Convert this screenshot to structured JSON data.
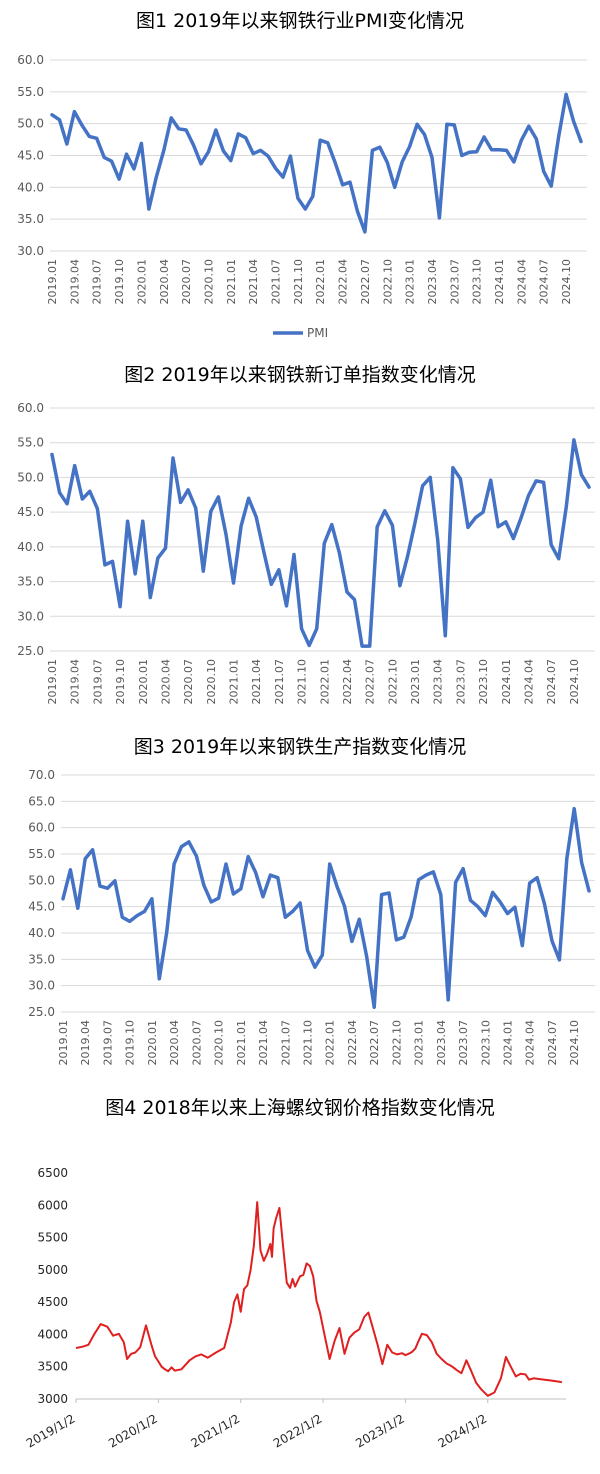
{
  "chart_data": [
    {
      "type": "line",
      "title": "图1  2019年以来钢铁行业PMI变化情况",
      "ylim": [
        30,
        60
      ],
      "yticks": [
        "30.0",
        "35.0",
        "40.0",
        "45.0",
        "50.0",
        "55.0",
        "60.0"
      ],
      "xticks": [
        "2019.01",
        "2019.04",
        "2019.07",
        "2019.10",
        "2020.01",
        "2020.04",
        "2020.07",
        "2020.10",
        "2021.01",
        "2021.04",
        "2021.07",
        "2021.10",
        "2022.01",
        "2022.04",
        "2022.07",
        "2022.10",
        "2023.01",
        "2023.04",
        "2023.07",
        "2023.10",
        "2024.01",
        "2024.04",
        "2024.07",
        "2024.10"
      ],
      "legend": "bottom",
      "grid": true,
      "color": "#4472C4",
      "series": [
        {
          "name": "PMI",
          "values": [
            51.4,
            50.6,
            46.8,
            51.9,
            49.8,
            48.0,
            47.7,
            44.7,
            44.1,
            41.3,
            45.2,
            42.9,
            46.9,
            36.6,
            41.6,
            45.8,
            50.9,
            49.2,
            49.0,
            46.6,
            43.7,
            45.6,
            49.0,
            45.7,
            44.2,
            48.4,
            47.8,
            45.3,
            45.8,
            44.9,
            43.0,
            41.6,
            44.9,
            38.3,
            36.6,
            38.6,
            47.4,
            47.0,
            43.9,
            40.4,
            40.8,
            36.2,
            33.0,
            45.8,
            46.3,
            43.9,
            40.0,
            44.0,
            46.4,
            49.9,
            48.3,
            44.7,
            35.2,
            49.9,
            49.8,
            45.0,
            45.5,
            45.6,
            47.9,
            45.9,
            45.9,
            45.8,
            44.0,
            47.4,
            49.6,
            47.6,
            42.5,
            40.2,
            47.9,
            54.6,
            50.4,
            47.2
          ]
        }
      ]
    },
    {
      "type": "line",
      "title": "图2  2019年以来钢铁新订单指数变化情况",
      "ylim": [
        25,
        60
      ],
      "yticks": [
        "25.0",
        "30.0",
        "35.0",
        "40.0",
        "45.0",
        "50.0",
        "55.0",
        "60.0"
      ],
      "xticks": [
        "2019.01",
        "2019.04",
        "2019.07",
        "2019.10",
        "2020.01",
        "2020.04",
        "2020.07",
        "2020.10",
        "2021.01",
        "2021.04",
        "2021.07",
        "2021.10",
        "2022.01",
        "2022.04",
        "2022.07",
        "2022.10",
        "2023.01",
        "2023.04",
        "2023.07",
        "2023.10",
        "2024.01",
        "2024.04",
        "2024.07",
        "2024.10"
      ],
      "grid": true,
      "color": "#4472C4",
      "series": [
        {
          "values": [
            53.3,
            47.8,
            46.2,
            51.7,
            46.9,
            48.0,
            45.5,
            37.4,
            37.9,
            31.4,
            43.7,
            36.1,
            43.7,
            32.7,
            38.4,
            39.8,
            52.8,
            46.4,
            48.2,
            45.6,
            36.5,
            45.1,
            47.2,
            41.8,
            34.8,
            43.0,
            47.0,
            44.3,
            39.3,
            34.6,
            36.7,
            31.5,
            38.9,
            28.2,
            25.8,
            28.2,
            40.5,
            43.2,
            39.1,
            33.5,
            32.4,
            25.7,
            25.7,
            42.9,
            45.2,
            43.1,
            34.4,
            38.6,
            43.5,
            48.8,
            50.0,
            41.0,
            27.2,
            51.4,
            49.8,
            42.8,
            44.2,
            45.0,
            49.6,
            42.9,
            43.6,
            41.2,
            44.1,
            47.4,
            49.5,
            49.3,
            40.3,
            38.3,
            45.8,
            55.4,
            50.4,
            48.6
          ]
        }
      ]
    },
    {
      "type": "line",
      "title": "图3  2019年以来钢铁生产指数变化情况",
      "ylim": [
        25,
        70
      ],
      "yticks": [
        "25.0",
        "30.0",
        "35.0",
        "40.0",
        "45.0",
        "50.0",
        "55.0",
        "60.0",
        "65.0",
        "70.0"
      ],
      "xticks": [
        "2019.01",
        "2019.04",
        "2019.07",
        "2019.10",
        "2020.01",
        "2020.04",
        "2020.07",
        "2020.10",
        "2021.01",
        "2021.04",
        "2021.07",
        "2021.10",
        "2022.01",
        "2022.04",
        "2022.07",
        "2022.10",
        "2023.01",
        "2023.04",
        "2023.07",
        "2023.10",
        "2024.01",
        "2024.04",
        "2024.07",
        "2024.10"
      ],
      "grid": true,
      "color": "#4472C4",
      "series": [
        {
          "values": [
            46.5,
            52.0,
            44.7,
            54.1,
            55.8,
            48.9,
            48.5,
            49.9,
            43.0,
            42.2,
            43.3,
            44.1,
            46.5,
            31.3,
            40.1,
            53.1,
            56.4,
            57.3,
            54.6,
            49.1,
            45.9,
            46.6,
            53.1,
            47.4,
            48.4,
            54.5,
            51.5,
            46.9,
            51.0,
            50.5,
            43.0,
            44.1,
            45.7,
            36.7,
            33.5,
            35.8,
            53.1,
            48.8,
            45.1,
            38.4,
            42.6,
            35.5,
            25.9,
            47.3,
            47.6,
            38.7,
            39.2,
            43.1,
            50.1,
            51.0,
            51.6,
            47.3,
            27.3,
            49.6,
            52.2,
            46.2,
            45.0,
            43.3,
            47.7,
            45.9,
            43.7,
            44.9,
            37.6,
            49.5,
            50.5,
            45.5,
            38.5,
            34.9,
            54.1,
            63.6,
            53.4,
            48.0
          ]
        }
      ]
    },
    {
      "type": "line",
      "title": "图4  2018年以来上海螺纹钢价格指数变化情况",
      "ylim": [
        3000,
        6500
      ],
      "yticks": [
        "3000",
        "3500",
        "4000",
        "4500",
        "5000",
        "5500",
        "6000",
        "6500"
      ],
      "xticks": [
        {
          "label": "2019/1/2",
          "x": 0
        },
        {
          "label": "2020/1/2",
          "x": 1
        },
        {
          "label": "2021/1/2",
          "x": 2
        },
        {
          "label": "2022/1/2",
          "x": 3
        },
        {
          "label": "2023/1/2",
          "x": 4
        },
        {
          "label": "2024/1/2",
          "x": 5
        }
      ],
      "grid": false,
      "color": "#E02020",
      "xlim": [
        0,
        5.95
      ],
      "series": [
        {
          "x": [
            0,
            0.08,
            0.15,
            0.22,
            0.3,
            0.38,
            0.45,
            0.52,
            0.58,
            0.62,
            0.67,
            0.72,
            0.78,
            0.85,
            0.92,
            0.96,
            1.0,
            1.04,
            1.08,
            1.12,
            1.16,
            1.2,
            1.28,
            1.38,
            1.45,
            1.52,
            1.6,
            1.7,
            1.8,
            1.88,
            1.92,
            1.96,
            2.0,
            2.04,
            2.08,
            2.12,
            2.16,
            2.2,
            2.24,
            2.28,
            2.32,
            2.36,
            2.38,
            2.4,
            2.43,
            2.47,
            2.52,
            2.56,
            2.6,
            2.63,
            2.66,
            2.69,
            2.72,
            2.76,
            2.8,
            2.84,
            2.88,
            2.92,
            2.96,
            3.02,
            3.08,
            3.14,
            3.2,
            3.26,
            3.32,
            3.38,
            3.44,
            3.5,
            3.55,
            3.6,
            3.66,
            3.72,
            3.78,
            3.84,
            3.9,
            3.96,
            4.0,
            4.04,
            4.08,
            4.12,
            4.16,
            4.2,
            4.26,
            4.32,
            4.38,
            4.44,
            4.5,
            4.56,
            4.62,
            4.68,
            4.74,
            4.8,
            4.86,
            4.92,
            5.0,
            5.08,
            5.16,
            5.22,
            5.28,
            5.34,
            5.4,
            5.46,
            5.5,
            5.56,
            5.62,
            5.68,
            5.74,
            5.8,
            5.86,
            5.9
          ],
          "values": [
            3790,
            3810,
            3840,
            4000,
            4160,
            4120,
            3980,
            4010,
            3880,
            3620,
            3700,
            3720,
            3800,
            4140,
            3820,
            3660,
            3580,
            3500,
            3460,
            3430,
            3490,
            3440,
            3460,
            3600,
            3660,
            3690,
            3640,
            3720,
            3790,
            4180,
            4500,
            4620,
            4350,
            4700,
            4760,
            5000,
            5380,
            6050,
            5300,
            5140,
            5250,
            5400,
            5200,
            5640,
            5800,
            5960,
            5300,
            4800,
            4720,
            4860,
            4740,
            4820,
            4900,
            4920,
            5100,
            5060,
            4900,
            4520,
            4350,
            3980,
            3620,
            3900,
            4100,
            3700,
            3950,
            4030,
            4080,
            4270,
            4340,
            4120,
            3850,
            3540,
            3840,
            3720,
            3690,
            3710,
            3680,
            3700,
            3730,
            3780,
            3900,
            4010,
            3990,
            3880,
            3700,
            3620,
            3550,
            3510,
            3450,
            3400,
            3600,
            3430,
            3250,
            3150,
            3050,
            3100,
            3320,
            3650,
            3500,
            3350,
            3390,
            3380,
            3300,
            3320,
            3310,
            3300,
            3290,
            3280,
            3270,
            3260
          ]
        }
      ]
    }
  ]
}
